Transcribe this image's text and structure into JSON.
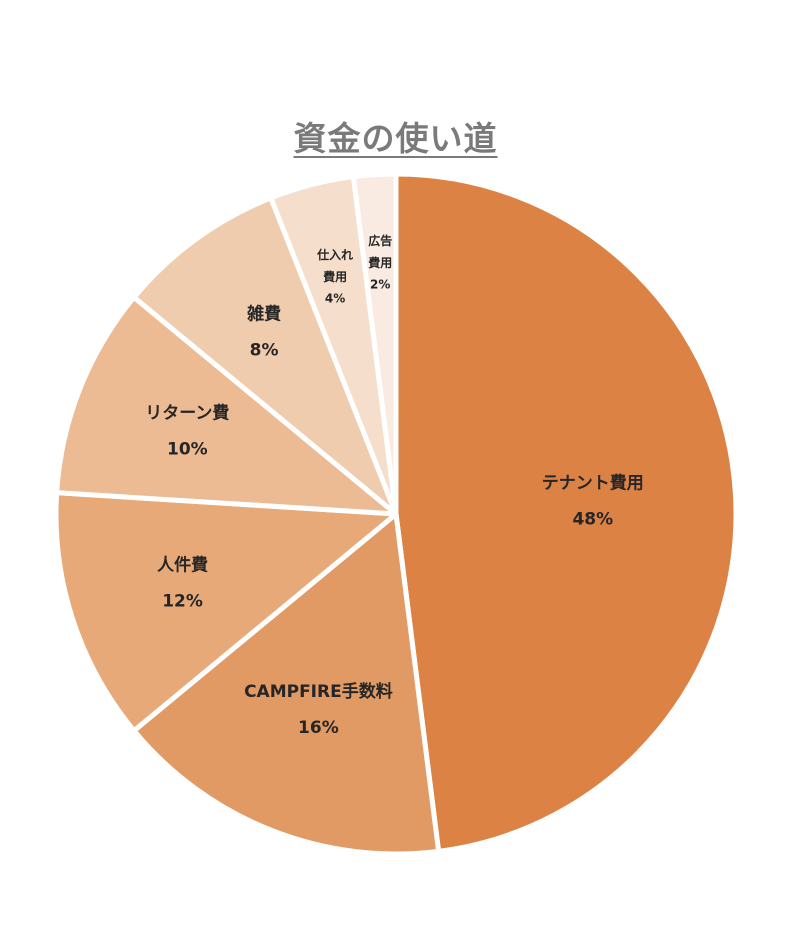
{
  "chart_data": {
    "type": "pie",
    "title": "資金の使い道",
    "slices": [
      {
        "label": "テナント費用",
        "value": 48,
        "value_label": "48%",
        "color": "#dc8245"
      },
      {
        "label": "CAMPFIRE手数料",
        "value": 16,
        "value_label": "16%",
        "color": "#e29a64"
      },
      {
        "label": "人件費",
        "value": 12,
        "value_label": "12%",
        "color": "#e8a979"
      },
      {
        "label": "リターン費",
        "value": 10,
        "value_label": "10%",
        "color": "#ecba93"
      },
      {
        "label": "雑費",
        "value": 8,
        "value_label": "8%",
        "color": "#f0ccaf"
      },
      {
        "label": "仕入れ費用",
        "value": 4,
        "value_label": "4%",
        "color": "#f5dfcc"
      },
      {
        "label": "広告費用",
        "value": 2,
        "value_label": "2%",
        "color": "#f9ebe2"
      }
    ],
    "legend": "none"
  }
}
